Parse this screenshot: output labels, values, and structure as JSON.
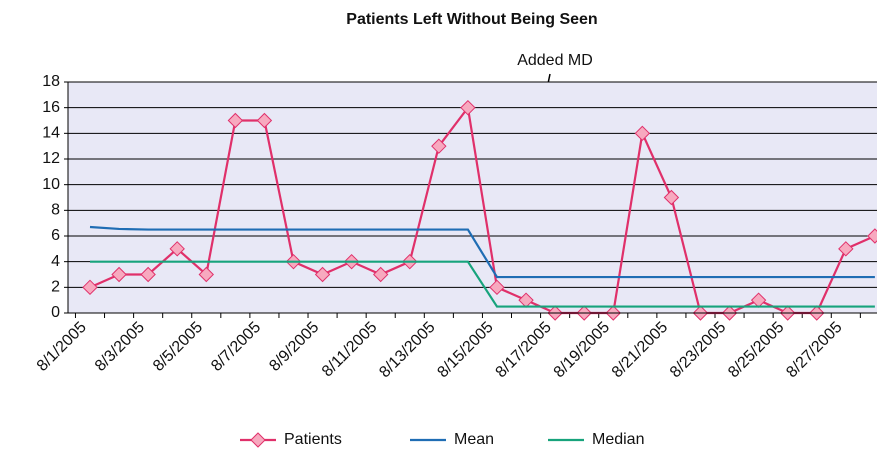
{
  "chart_data": {
    "type": "line",
    "title": "Patients Left Without Being Seen",
    "annotation": "Added MD",
    "categories": [
      "8/1/2005",
      null,
      "8/3/2005",
      null,
      "8/5/2005",
      null,
      "8/7/2005",
      null,
      "8/9/2005",
      null,
      "8/11/2005",
      null,
      "8/13/2005",
      null,
      "8/15/2005",
      null,
      "8/17/2005",
      null,
      "8/19/2005",
      null,
      "8/21/2005",
      null,
      "8/23/2005",
      null,
      "8/25/2005",
      null,
      "8/27/2005",
      null
    ],
    "series": [
      {
        "name": "Patients",
        "color": "#e0306a",
        "marker": "diamond",
        "values": [
          2,
          3,
          3,
          5,
          3,
          15,
          15,
          4,
          3,
          4,
          3,
          4,
          13,
          16,
          2,
          1,
          0,
          0,
          0,
          14,
          9,
          0,
          0,
          1,
          0,
          0,
          5,
          6
        ]
      },
      {
        "name": "Mean",
        "color": "#1f6db4",
        "values": [
          6.7,
          6.55,
          6.5,
          6.5,
          6.5,
          6.5,
          6.5,
          6.5,
          6.5,
          6.5,
          6.5,
          6.5,
          6.5,
          6.5,
          2.8,
          2.8,
          2.8,
          2.8,
          2.8,
          2.8,
          2.8,
          2.8,
          2.8,
          2.8,
          2.8,
          2.8,
          2.8,
          2.8
        ]
      },
      {
        "name": "Median",
        "color": "#17a37c",
        "values": [
          4,
          4,
          4,
          4,
          4,
          4,
          4,
          4,
          4,
          4,
          4,
          4,
          4,
          4,
          0.5,
          0.5,
          0.5,
          0.5,
          0.5,
          0.5,
          0.5,
          0.5,
          0.5,
          0.5,
          0.5,
          0.5,
          0.5,
          0.5
        ]
      }
    ],
    "ylim": [
      0,
      18
    ],
    "yticks": [
      0,
      2,
      4,
      6,
      8,
      10,
      12,
      14,
      16,
      18
    ],
    "grid": true,
    "legend": "bottom"
  }
}
